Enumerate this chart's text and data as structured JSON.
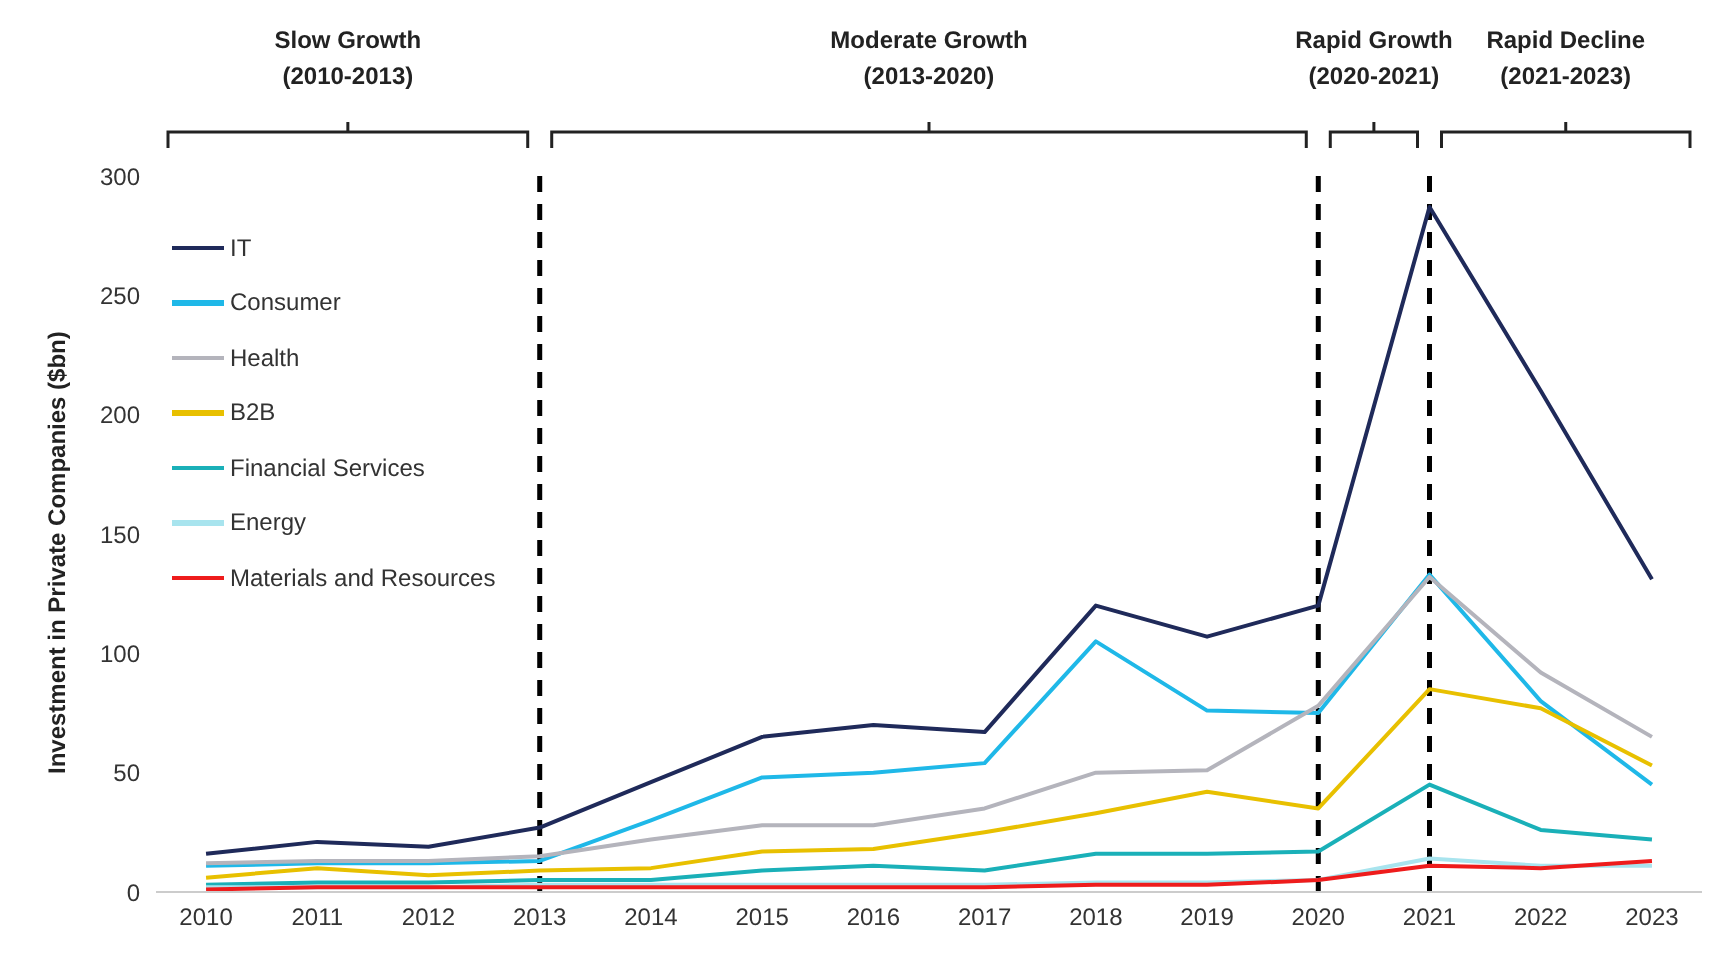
{
  "chart_data": {
    "type": "line",
    "ylabel": "Investment in Private Companies ($bn)",
    "x": [
      2010,
      2011,
      2012,
      2013,
      2014,
      2015,
      2016,
      2017,
      2018,
      2019,
      2020,
      2021,
      2022,
      2023
    ],
    "xlim": [
      2009.55,
      2023.45
    ],
    "xticks": [
      2010,
      2011,
      2012,
      2013,
      2014,
      2015,
      2016,
      2017,
      2018,
      2019,
      2020,
      2021,
      2022,
      2023
    ],
    "ylim": [
      0,
      300
    ],
    "yticks": [
      0,
      50,
      100,
      150,
      200,
      250,
      300
    ],
    "legend": "top left",
    "marker": "none",
    "line_style": "solid",
    "series": [
      {
        "name": "IT",
        "color": "#1f2a5a",
        "values": [
          16,
          21,
          19,
          27,
          46,
          65,
          70,
          67,
          120,
          107,
          120,
          287,
          210,
          131
        ]
      },
      {
        "name": "Consumer",
        "color": "#1fb8e8",
        "values": [
          11,
          12,
          12,
          13,
          30,
          48,
          50,
          54,
          105,
          76,
          75,
          133,
          80,
          45
        ]
      },
      {
        "name": "Health",
        "color": "#b4b4bc",
        "values": [
          12,
          13,
          13,
          15,
          22,
          28,
          28,
          35,
          50,
          51,
          78,
          132,
          92,
          65
        ]
      },
      {
        "name": "B2B",
        "color": "#e8c000",
        "values": [
          6,
          10,
          7,
          9,
          10,
          17,
          18,
          25,
          33,
          42,
          35,
          85,
          77,
          53
        ]
      },
      {
        "name": "Financial Services",
        "color": "#1ab0b8",
        "values": [
          3,
          4,
          4,
          5,
          5,
          9,
          11,
          9,
          16,
          16,
          17,
          45,
          26,
          22
        ]
      },
      {
        "name": "Energy",
        "color": "#a8e4ee",
        "values": [
          2,
          2,
          2,
          3,
          3,
          3,
          3,
          3,
          4,
          4,
          5,
          14,
          11,
          11
        ]
      },
      {
        "name": "Materials and Resources",
        "color": "#ee1c1c",
        "values": [
          1,
          2,
          2,
          2,
          2,
          2,
          2,
          2,
          3,
          3,
          5,
          11,
          10,
          13
        ]
      }
    ],
    "ref_lines": [
      {
        "axis": "x",
        "value": 2013,
        "color": "#000000",
        "line_style": "dashed"
      },
      {
        "axis": "x",
        "value": 2020,
        "color": "#000000",
        "line_style": "dashed"
      },
      {
        "axis": "x",
        "value": 2021,
        "color": "#000000",
        "line_style": "dashed"
      }
    ],
    "annotations": [
      "Slow Growth\n(2010-2013)",
      "Moderate Growth\n(2013-2020)",
      "Rapid Growth\n(2020-2021)",
      "Rapid Decline\n(2021-2023)"
    ]
  }
}
